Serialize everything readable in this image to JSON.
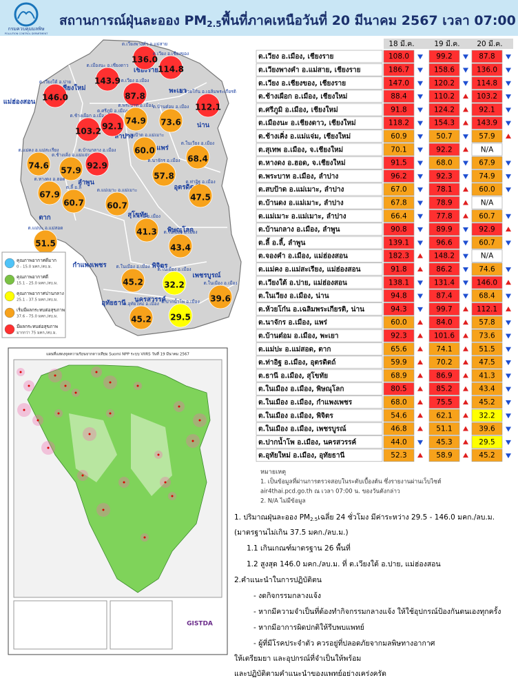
{
  "header": {
    "logo_name": "กรมควบคุมมลพิษ",
    "logo_sub": "POLLUTION CONTROL DEPARTMENT",
    "title_pre": "สถานการณ์ฝุ่นละออง PM",
    "title_sub": "2.5",
    "title_post": "พื้นที่ภาคเหนือวันที่ 20 มีนาคม 2567 เวลา 07:00 น."
  },
  "table": {
    "columns": [
      "18 มี.ค.",
      "19 มี.ค.",
      "20 มี.ค."
    ],
    "rows": [
      {
        "station": "ต.เวียง อ.เมือง, เชียงราย",
        "values": [
          "108.0",
          "99.2",
          "87.8"
        ],
        "trends": [
          "down",
          "down",
          "down"
        ]
      },
      {
        "station": "ต.เวียงพางคำ อ.แม่สาย, เชียงราย",
        "values": [
          "186.7",
          "158.6",
          "136.0"
        ],
        "trends": [
          "down",
          "down",
          "down"
        ]
      },
      {
        "station": "ต.เวียง อ.เชียงของ, เชียงราย",
        "values": [
          "147.0",
          "120.2",
          "114.8"
        ],
        "trends": [
          "down",
          "down",
          "down"
        ]
      },
      {
        "station": "ต.ช้างเผือก อ.เมือง, เชียงใหม่",
        "values": [
          "88.4",
          "110.2",
          "103.2"
        ],
        "trends": [
          "down",
          "up",
          "down"
        ]
      },
      {
        "station": "ต.ศรีภูมิ อ.เมือง, เชียงใหม่",
        "values": [
          "91.8",
          "124.2",
          "92.1"
        ],
        "trends": [
          "down",
          "up",
          "down"
        ]
      },
      {
        "station": "ต.เมืองนะ อ.เชียงดาว, เชียงใหม่",
        "values": [
          "118.2",
          "154.3",
          "143.9"
        ],
        "trends": [
          "down",
          "up",
          "down"
        ]
      },
      {
        "station": "ต.ช้างเคิ่ง อ.แม่แจ่ม, เชียงใหม่",
        "values": [
          "60.9",
          "50.7",
          "57.9"
        ],
        "trends": [
          "down",
          "down",
          "up"
        ]
      },
      {
        "station": "ต.สุเทพ  อ.เมือง, จ.เชียงใหม่",
        "values": [
          "70.1",
          "92.2",
          "N/A"
        ],
        "trends": [
          "down",
          "up",
          null
        ]
      },
      {
        "station": "ต.หางดง อ.ฮอด, จ.เชียงใหม่",
        "values": [
          "91.5",
          "68.0",
          "67.9"
        ],
        "trends": [
          "down",
          "down",
          "down"
        ]
      },
      {
        "station": "ต.พระบาท อ.เมือง, ลำปาง",
        "values": [
          "96.2",
          "92.3",
          "74.9"
        ],
        "trends": [
          "down",
          "down",
          "down"
        ]
      },
      {
        "station": "ต.สบป้าด อ.แม่เมาะ, ลำปาง",
        "values": [
          "67.0",
          "78.1",
          "60.0"
        ],
        "trends": [
          "down",
          "up",
          "down"
        ]
      },
      {
        "station": "ต.บ้านดง อ.แม่เมาะ, ลำปาง",
        "values": [
          "67.8",
          "78.9",
          "N/A"
        ],
        "trends": [
          "down",
          "up",
          null
        ]
      },
      {
        "station": "ต.แม่เมาะ อ.แม่เมาะ, ลำปาง",
        "values": [
          "66.4",
          "77.8",
          "60.7"
        ],
        "trends": [
          "down",
          "up",
          "down"
        ]
      },
      {
        "station": "ต.บ้านกลาง อ.เมือง, ลำพูน",
        "values": [
          "90.8",
          "89.9",
          "92.9"
        ],
        "trends": [
          "down",
          "down",
          "up"
        ]
      },
      {
        "station": "ต.ลี้ อ.ลี้, ลำพูน",
        "values": [
          "139.1",
          "96.6",
          "60.7"
        ],
        "trends": [
          "down",
          "down",
          "down"
        ]
      },
      {
        "station": "ต.จองคำ อ.เมือง, แม่ฮ่องสอน",
        "values": [
          "182.3",
          "148.2",
          "N/A"
        ],
        "trends": [
          "up",
          "down",
          null
        ]
      },
      {
        "station": "ต.แม่คง อ.แม่สะเรียง, แม่ฮ่องสอน",
        "values": [
          "91.8",
          "86.2",
          "74.6"
        ],
        "trends": [
          "up",
          "down",
          "down"
        ]
      },
      {
        "station": "ต.เวียงใต้ อ.ปาย, แม่ฮ่องสอน",
        "values": [
          "138.1",
          "131.4",
          "146.0"
        ],
        "trends": [
          "down",
          "down",
          "up"
        ]
      },
      {
        "station": "ต.ในเวียง อ.เมือง, น่าน",
        "values": [
          "94.8",
          "87.4",
          "68.4"
        ],
        "trends": [
          "down",
          "down",
          "down"
        ]
      },
      {
        "station": "ต.ห้วยโก๋น อ.เฉลิมพระเกียรติ, น่าน",
        "values": [
          "94.3",
          "99.7",
          "112.1"
        ],
        "trends": [
          "down",
          "up",
          "up"
        ]
      },
      {
        "station": "ต.นาจักร อ.เมือง, แพร่",
        "values": [
          "60.0",
          "84.0",
          "57.8"
        ],
        "trends": [
          "up",
          "up",
          "down"
        ]
      },
      {
        "station": "ต.บ้านต๋อม อ.เมือง, พะเยา",
        "values": [
          "92.3",
          "101.6",
          "73.6"
        ],
        "trends": [
          "up",
          "up",
          "down"
        ]
      },
      {
        "station": "ต.แม่ปะ อ.แม่สอด, ตาก",
        "values": [
          "65.6",
          "74.1",
          "51.5"
        ],
        "trends": [
          "up",
          "up",
          "down"
        ]
      },
      {
        "station": "ต.ท่าอิฐ อ.เมือง, อุตรดิตถ์",
        "values": [
          "59.9",
          "70.2",
          "47.5"
        ],
        "trends": [
          "up",
          "up",
          "down"
        ]
      },
      {
        "station": "ต.ธานี อ.เมือง, สุโขทัย",
        "values": [
          "68.9",
          "86.9",
          "41.3"
        ],
        "trends": [
          "up",
          "up",
          "down"
        ]
      },
      {
        "station": "ต.ในเมือง อ.เมือง, พิษณุโลก",
        "values": [
          "80.5",
          "85.2",
          "43.4"
        ],
        "trends": [
          "up",
          "up",
          "down"
        ]
      },
      {
        "station": "ต.ในเมือง อ.เมือง, กำแพงเพชร",
        "values": [
          "68.0",
          "75.5",
          "45.2"
        ],
        "trends": [
          "up",
          "up",
          "down"
        ]
      },
      {
        "station": "ต.ในเมือง อ.เมือง, พิจิตร",
        "values": [
          "54.6",
          "62.1",
          "32.2"
        ],
        "trends": [
          "up",
          "up",
          "down"
        ]
      },
      {
        "station": "ต.ในเมือง อ.เมือง, เพชรบูรณ์",
        "values": [
          "46.8",
          "51.1",
          "39.6"
        ],
        "trends": [
          "up",
          "up",
          "down"
        ]
      },
      {
        "station": "ต.ปากน้ำโพ อ.เมือง, นครสวรรค์",
        "values": [
          "44.0",
          "45.3",
          "29.5"
        ],
        "trends": [
          "down",
          "up",
          "down"
        ]
      },
      {
        "station": "ต.อุทัยใหม่ อ.เมือง, อุทัยธานี",
        "values": [
          "52.3",
          "58.9",
          "45.2"
        ],
        "trends": [
          "up",
          "up",
          "down"
        ]
      }
    ]
  },
  "legend": [
    {
      "name": "คุณภาพอากาศดีมาก",
      "range": "0 - 15.0 มคก./ลบ.ม.",
      "color": "#4fc3f7"
    },
    {
      "name": "คุณภาพอากาศดี",
      "range": "15.1 - 25.0 มคก./ลบ.ม.",
      "color": "#7ac143"
    },
    {
      "name": "คุณภาพอากาศปานกลาง",
      "range": "25.1 - 37.5 มคก./ลบ.ม.",
      "color": "#ffff00"
    },
    {
      "name": "เริ่มมีผลกระทบต่อสุขภาพ",
      "range": "37.6 - 75.0 มคก./ลบ.ม.",
      "color": "#f7a21b"
    },
    {
      "name": "มีผลกระทบต่อสุขภาพ",
      "range": "มากกว่า 75 มคก./ลบ.ม.",
      "color": "#ff3030"
    }
  ],
  "map": {
    "provinces": [
      "เชียงราย",
      "แม่ฮ่องสอน",
      "เชียงใหม่",
      "พะเยา",
      "น่าน",
      "ลำปาง",
      "แพร่",
      "ลำพูน",
      "อุตรดิตถ์",
      "สุโขทัย",
      "ตาก",
      "พิษณุโลก",
      "กำแพงเพชร",
      "พิจิตร",
      "เพชรบูรณ์",
      "นครสวรรค์",
      "อุทัยธานี"
    ],
    "markers": [
      {
        "label": "ต.เวียงพางคำ อ.แม่สาย",
        "value": "136.0"
      },
      {
        "label": "ต.เวียง อ.เชียงของ",
        "value": "114.8"
      },
      {
        "label": "ต.เมืองนะ อ.เชียงดาว",
        "value": "143.9"
      },
      {
        "label": "ต.เวียง อ.เมือง",
        "value": "87.8"
      },
      {
        "label": "ต.เวียงใต้ อ.ปาย",
        "value": "146.0"
      },
      {
        "label": "ต.ห้วยโก๋น อ.เฉลิมพระเกียรติ",
        "value": "112.1"
      },
      {
        "label": "ต.ช้างเผือก อ.เมือง",
        "value": "103.2"
      },
      {
        "label": "ต.ศรีภูมิ อ.เมือง",
        "value": "92.1"
      },
      {
        "label": "ต.พระบาท อ.เมือง",
        "value": "74.9"
      },
      {
        "label": "ต.บ้านต๋อม อ.เมือง",
        "value": "73.6"
      },
      {
        "label": "ต.แม่คง อ.แม่สะเรียง",
        "value": "74.6"
      },
      {
        "label": "ต.ช้างเคิ่ง อ.แม่แจ่ม",
        "value": "57.9"
      },
      {
        "label": "ต.บ้านกลาง อ.เมือง",
        "value": "92.9"
      },
      {
        "label": "ต.สบป้าด อ.แม่เมาะ",
        "value": "60.0"
      },
      {
        "label": "ต.นาจักร อ.เมือง",
        "value": "57.8"
      },
      {
        "label": "ต.ในเวียง อ.เมือง",
        "value": "68.4"
      },
      {
        "label": "ต.หางดง อ.ฮอด",
        "value": "67.9"
      },
      {
        "label": "ต.ลี้ อ.ลี้",
        "value": "60.7"
      },
      {
        "label": "ต.แม่เมาะ อ.แม่เมาะ",
        "value": "60.7"
      },
      {
        "label": "ต.ท่าอิฐ อ.เมือง",
        "value": "47.5"
      },
      {
        "label": "ต.ธานี อ.เมือง",
        "value": "41.3"
      },
      {
        "label": "ต.แม่ปะ อ.แม่สอด",
        "value": "51.5"
      },
      {
        "label": "ต.ในเมือง อ.เมือง",
        "value": "43.4"
      },
      {
        "label": "ต.ในเมือง อ.เมือง",
        "value": "45.2"
      },
      {
        "label": "ต.ในเมือง อ.เมือง",
        "value": "32.2"
      },
      {
        "label": "ต.ในเมือง อ.เมือง",
        "value": "39.6"
      },
      {
        "label": "ต.ปากน้ำโพ อ.เมือง",
        "value": "29.5"
      },
      {
        "label": "ต.อุทัยใหม่ อ.เมือง",
        "value": "45.2"
      }
    ]
  },
  "hotspot_map": {
    "title": "แผนที่แสดงจุดความร้อนจากดาวเทียม Suomi NPP ระบบ VIIRS วันที่ 19 มีนาคม 2567",
    "agency": "GISTDA"
  },
  "notes": {
    "heading": "หมายเหตุ",
    "lines": [
      "1. เป็นข้อมูลที่ผ่านการตรวจสอบในระดับเบื้องต้น ซึ่งรายงานผ่านเว็บไซต์",
      "air4thai.pcd.go.th ณ เวลา 07:00 น. ของวันดังกล่าว",
      "2. N/A ไม่มีข้อมูล"
    ]
  },
  "summary": {
    "line1_pre": "1. ปริมาณฝุ่นละออง PM",
    "line1_sub": "2.5",
    "line1_post": "เฉลี่ย 24 ชั่วโมง มีค่าระหว่าง 29.5 - 146.0 มคก./ลบ.ม.",
    "lines": [
      "(มาตรฐานไม่เกิน 37.5 มคก./ลบ.ม.)",
      "1.1 เกินเกณฑ์มาตรฐาน 26 พื้นที่",
      "1.2 สูงสุด 146.0 มคก./ลบ.ม. ที่ ต.เวียงใต้ อ.ปาย, แม่ฮ่องสอน",
      "2.คำแนะนำในการปฏิบัติตน",
      "- งดกิจกรรมกลางแจ้ง",
      "- หากมีความจำเป็นที่ต้องทำกิจกรรมกลางแจ้ง ให้ใช้อุปกรณ์ป้องกันตนเองทุกครั้ง",
      "- หากมีอาการผิดปกติให้รีบพบแพทย์",
      "- ผู้ที่มีโรคประจำตัว ควรอยู่ที่ปลอดภัยจากมลพิษทางอากาศ",
      "ให้เตรียมยา และอุปกรณ์ที่จำเป็นให้พร้อม",
      "และปฏิบัติตามคำแนะนำของแพทย์อย่างเคร่งครัด"
    ]
  }
}
